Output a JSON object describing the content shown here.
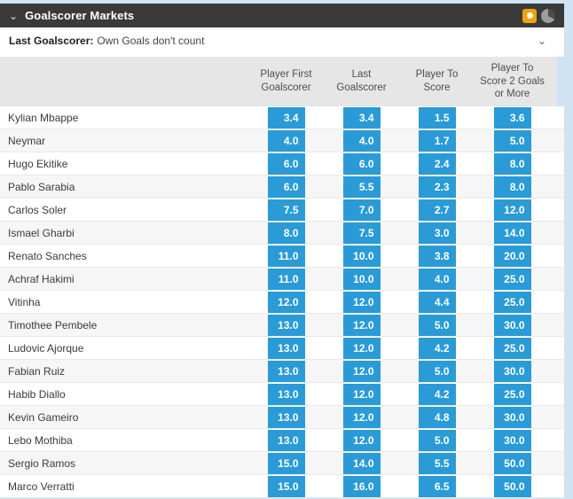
{
  "header": {
    "title": "Goalscorer Markets",
    "collapse_glyph": "⌄",
    "bar_color": "#3a3a3a",
    "icons": [
      {
        "name": "highlight-card-icon",
        "color": "#f0a30a"
      },
      {
        "name": "clock-icon",
        "color": "#9d9d9d"
      }
    ]
  },
  "subheader": {
    "label": "Last Goalscorer:",
    "note": "Own Goals don't count",
    "expand_glyph": "⌄"
  },
  "table": {
    "columns": [
      "Player First Goalscorer",
      "Last Goalscorer",
      "Player To Score",
      "Player To Score 2 Goals or More"
    ],
    "odds_color": "#2a9bd6",
    "players": [
      {
        "name": "Kylian Mbappe",
        "odds": [
          "3.4",
          "3.4",
          "1.5",
          "3.6"
        ]
      },
      {
        "name": "Neymar",
        "odds": [
          "4.0",
          "4.0",
          "1.7",
          "5.0"
        ]
      },
      {
        "name": "Hugo Ekitike",
        "odds": [
          "6.0",
          "6.0",
          "2.4",
          "8.0"
        ]
      },
      {
        "name": "Pablo Sarabia",
        "odds": [
          "6.0",
          "5.5",
          "2.3",
          "8.0"
        ]
      },
      {
        "name": "Carlos Soler",
        "odds": [
          "7.5",
          "7.0",
          "2.7",
          "12.0"
        ]
      },
      {
        "name": "Ismael Gharbi",
        "odds": [
          "8.0",
          "7.5",
          "3.0",
          "14.0"
        ]
      },
      {
        "name": "Renato Sanches",
        "odds": [
          "11.0",
          "10.0",
          "3.8",
          "20.0"
        ]
      },
      {
        "name": "Achraf Hakimi",
        "odds": [
          "11.0",
          "10.0",
          "4.0",
          "25.0"
        ]
      },
      {
        "name": "Vitinha",
        "odds": [
          "12.0",
          "12.0",
          "4.4",
          "25.0"
        ]
      },
      {
        "name": "Timothee Pembele",
        "odds": [
          "13.0",
          "12.0",
          "5.0",
          "30.0"
        ]
      },
      {
        "name": "Ludovic Ajorque",
        "odds": [
          "13.0",
          "12.0",
          "4.2",
          "25.0"
        ]
      },
      {
        "name": "Fabian Ruiz",
        "odds": [
          "13.0",
          "12.0",
          "5.0",
          "30.0"
        ]
      },
      {
        "name": "Habib Diallo",
        "odds": [
          "13.0",
          "12.0",
          "4.2",
          "25.0"
        ]
      },
      {
        "name": "Kevin Gameiro",
        "odds": [
          "13.0",
          "12.0",
          "4.8",
          "30.0"
        ]
      },
      {
        "name": "Lebo Mothiba",
        "odds": [
          "13.0",
          "12.0",
          "5.0",
          "30.0"
        ]
      },
      {
        "name": "Sergio Ramos",
        "odds": [
          "15.0",
          "14.0",
          "5.5",
          "50.0"
        ]
      },
      {
        "name": "Marco Verratti",
        "odds": [
          "15.0",
          "16.0",
          "6.5",
          "50.0"
        ]
      }
    ]
  }
}
